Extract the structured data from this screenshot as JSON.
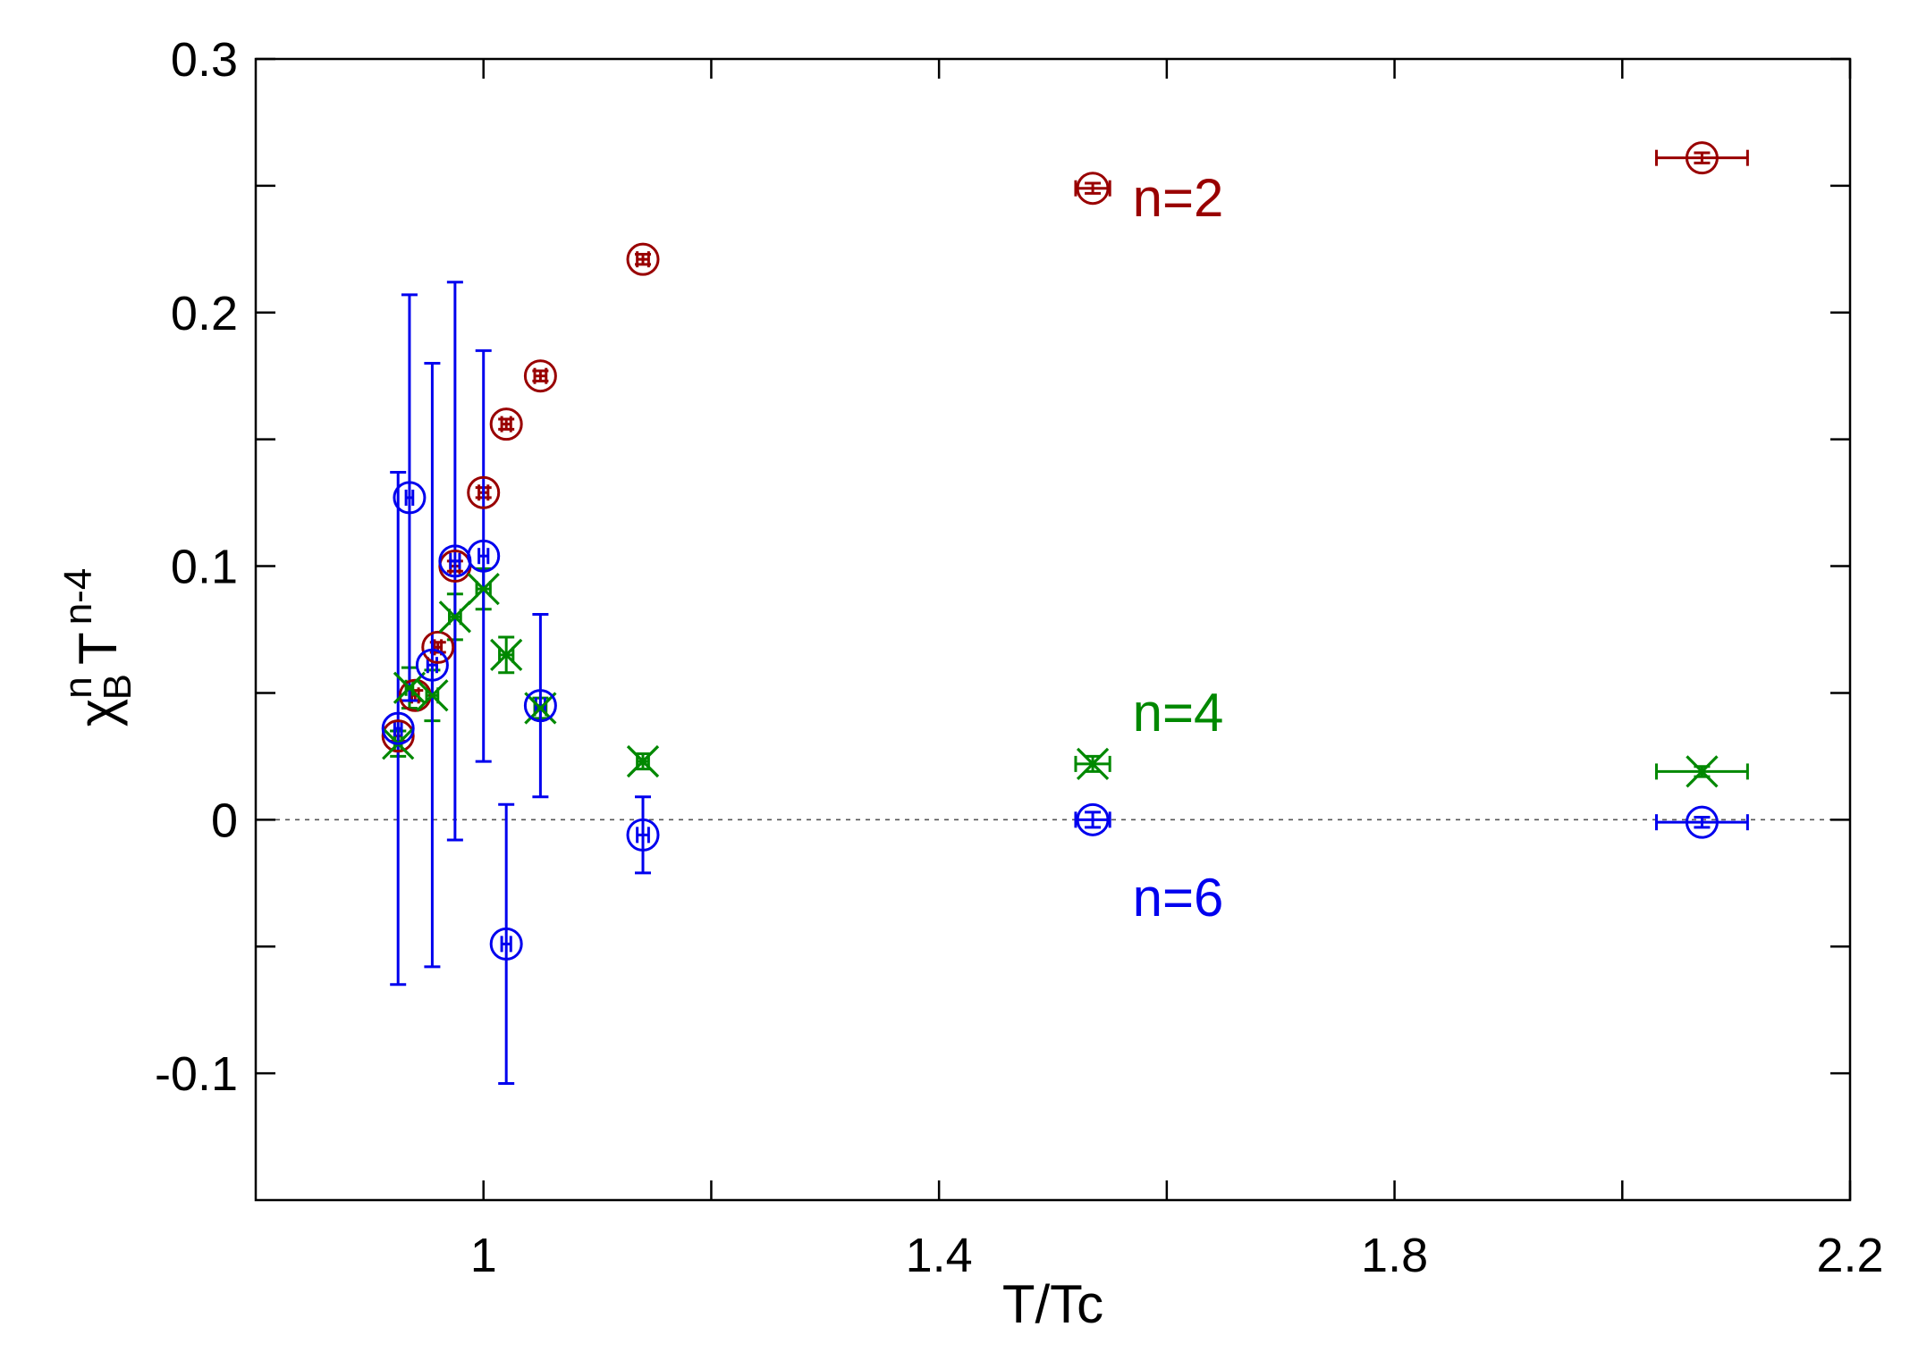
{
  "chart_data": {
    "type": "scatter",
    "title": "",
    "xlabel": "T/Tc",
    "ylabel": {
      "symbol": "χ",
      "superscript": "n",
      "subscript": "B",
      "base": "T",
      "exponent": "n-4"
    },
    "xlim": [
      0.8,
      2.2
    ],
    "ylim": [
      -0.15,
      0.3
    ],
    "x_ticks": [
      {
        "value": 1.0,
        "label": "1"
      },
      {
        "value": 1.4,
        "label": "1.4"
      },
      {
        "value": 1.8,
        "label": "1.8"
      },
      {
        "value": 2.2,
        "label": "2.2"
      }
    ],
    "x_minor_ticks": [
      1.2,
      1.6,
      2.0
    ],
    "y_ticks": [
      {
        "value": 0.3,
        "label": "0.3"
      },
      {
        "value": 0.2,
        "label": "0.2"
      },
      {
        "value": 0.1,
        "label": "0.1"
      },
      {
        "value": 0.0,
        "label": "0"
      },
      {
        "value": -0.1,
        "label": "-0.1"
      }
    ],
    "y_minor_ticks": [
      0.25,
      0.15,
      0.05,
      -0.05
    ],
    "zero_line": true,
    "series": [
      {
        "name": "n=2",
        "color": "#990000",
        "marker": "circle",
        "points": [
          {
            "x": 0.925,
            "y": 0.033,
            "xerr": 0.003,
            "yerr": 0.002
          },
          {
            "x": 0.94,
            "y": 0.049,
            "xerr": 0.003,
            "yerr": 0.002
          },
          {
            "x": 0.96,
            "y": 0.068,
            "xerr": 0.003,
            "yerr": 0.002
          },
          {
            "x": 0.975,
            "y": 0.1,
            "xerr": 0.004,
            "yerr": 0.002
          },
          {
            "x": 1.0,
            "y": 0.129,
            "xerr": 0.004,
            "yerr": 0.002
          },
          {
            "x": 1.02,
            "y": 0.156,
            "xerr": 0.004,
            "yerr": 0.002
          },
          {
            "x": 1.05,
            "y": 0.175,
            "xerr": 0.005,
            "yerr": 0.002
          },
          {
            "x": 1.14,
            "y": 0.221,
            "xerr": 0.005,
            "yerr": 0.002
          },
          {
            "x": 1.535,
            "y": 0.249,
            "xerr": 0.015,
            "yerr": 0.002
          },
          {
            "x": 2.07,
            "y": 0.261,
            "xerr": 0.04,
            "yerr": 0.002
          }
        ]
      },
      {
        "name": "n=4",
        "color": "#008800",
        "marker": "cross",
        "points": [
          {
            "x": 0.925,
            "y": 0.03,
            "xerr": 0.003,
            "yerr": 0.005
          },
          {
            "x": 0.935,
            "y": 0.052,
            "xerr": 0.003,
            "yerr": 0.008
          },
          {
            "x": 0.955,
            "y": 0.049,
            "xerr": 0.005,
            "yerr": 0.01
          },
          {
            "x": 0.975,
            "y": 0.08,
            "xerr": 0.005,
            "yerr": 0.009
          },
          {
            "x": 1.0,
            "y": 0.091,
            "xerr": 0.006,
            "yerr": 0.008
          },
          {
            "x": 1.02,
            "y": 0.065,
            "xerr": 0.006,
            "yerr": 0.007
          },
          {
            "x": 1.05,
            "y": 0.044,
            "xerr": 0.005,
            "yerr": 0.004
          },
          {
            "x": 1.14,
            "y": 0.023,
            "xerr": 0.005,
            "yerr": 0.003
          },
          {
            "x": 1.535,
            "y": 0.022,
            "xerr": 0.015,
            "yerr": 0.003
          },
          {
            "x": 2.07,
            "y": 0.019,
            "xerr": 0.04,
            "yerr": 0.002
          }
        ]
      },
      {
        "name": "n=6",
        "color": "#0000ee",
        "marker": "circle",
        "points": [
          {
            "x": 0.925,
            "y": 0.036,
            "xerr": 0.003,
            "yerr": 0.101
          },
          {
            "x": 0.935,
            "y": 0.127,
            "xerr": 0.003,
            "yerr": 0.08
          },
          {
            "x": 0.955,
            "y": 0.061,
            "xerr": 0.004,
            "yerr": 0.119
          },
          {
            "x": 0.975,
            "y": 0.102,
            "xerr": 0.004,
            "yerr": 0.11
          },
          {
            "x": 1.0,
            "y": 0.104,
            "xerr": 0.004,
            "yerr": 0.081
          },
          {
            "x": 1.02,
            "y": -0.049,
            "xerr": 0.004,
            "yerr": 0.055
          },
          {
            "x": 1.05,
            "y": 0.045,
            "xerr": 0.004,
            "yerr": 0.036
          },
          {
            "x": 1.14,
            "y": -0.006,
            "xerr": 0.005,
            "yerr": 0.015
          },
          {
            "x": 1.535,
            "y": 0.0,
            "xerr": 0.015,
            "yerr": 0.003
          },
          {
            "x": 2.07,
            "y": -0.001,
            "xerr": 0.04,
            "yerr": 0.002
          }
        ]
      }
    ],
    "annotations": [
      {
        "text": "n=2",
        "x": 1.57,
        "y": 0.238,
        "color": "#990000"
      },
      {
        "text": "n=4",
        "x": 1.57,
        "y": 0.035,
        "color": "#008800"
      },
      {
        "text": "n=6",
        "x": 1.57,
        "y": -0.038,
        "color": "#0000ee"
      }
    ]
  }
}
